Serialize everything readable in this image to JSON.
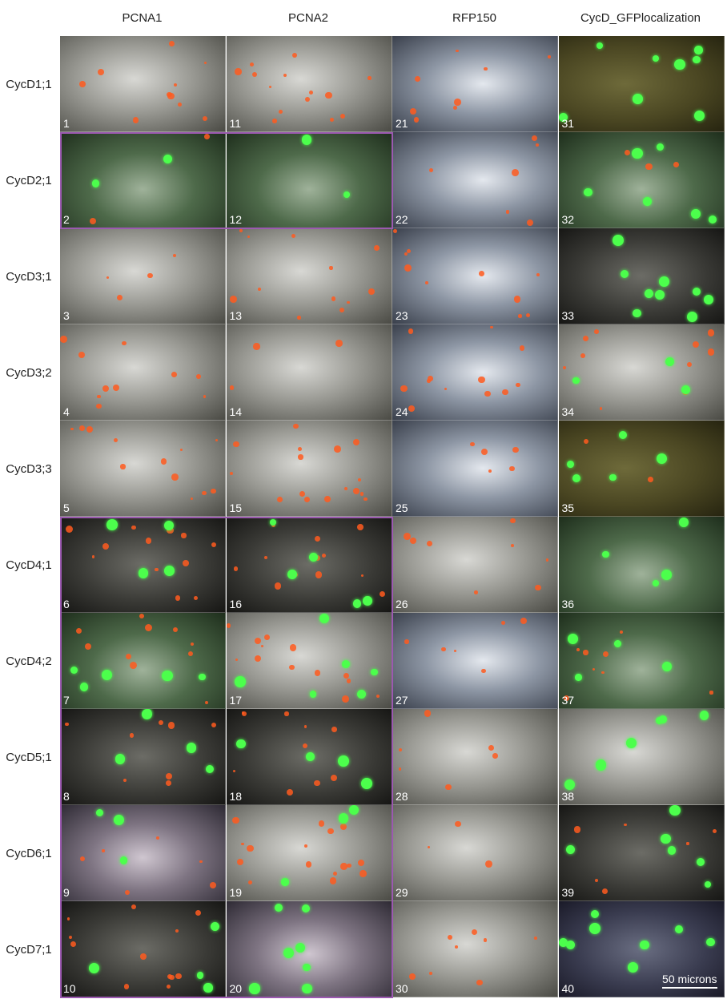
{
  "columns": [
    {
      "label": [
        "PCNA1"
      ]
    },
    {
      "label": [
        "PCNA2"
      ]
    },
    {
      "label": [
        "RFP150"
      ]
    },
    {
      "label": [
        "CycD_GFP",
        "localization"
      ]
    }
  ],
  "rows": [
    "CycD1;1",
    "CycD2;1",
    "CycD3;1",
    "CycD3;2",
    "CycD3;3",
    "CycD4;1",
    "CycD4;2",
    "CycD5;1",
    "CycD6;1",
    "CycD7;1"
  ],
  "panels": [
    {
      "num": "1",
      "tone": "gray",
      "green": 0,
      "red": 10
    },
    {
      "num": "11",
      "tone": "gray",
      "green": 0,
      "red": 14
    },
    {
      "num": "21",
      "tone": "blue",
      "green": 0,
      "red": 8
    },
    {
      "num": "31",
      "tone": "olive",
      "green": 8,
      "red": 0
    },
    {
      "num": "2",
      "tone": "green",
      "green": 2,
      "red": 2
    },
    {
      "num": "12",
      "tone": "green",
      "green": 2,
      "red": 0
    },
    {
      "num": "22",
      "tone": "blue",
      "green": 0,
      "red": 6
    },
    {
      "num": "32",
      "tone": "green",
      "green": 6,
      "red": 3
    },
    {
      "num": "3",
      "tone": "gray",
      "green": 0,
      "red": 4
    },
    {
      "num": "13",
      "tone": "gray",
      "green": 0,
      "red": 12
    },
    {
      "num": "23",
      "tone": "blue",
      "green": 0,
      "red": 10
    },
    {
      "num": "33",
      "tone": "dark",
      "green": 9,
      "red": 0
    },
    {
      "num": "4",
      "tone": "gray",
      "green": 0,
      "red": 10
    },
    {
      "num": "14",
      "tone": "gray",
      "green": 0,
      "red": 3
    },
    {
      "num": "24",
      "tone": "blue",
      "green": 0,
      "red": 12
    },
    {
      "num": "34",
      "tone": "gray",
      "green": 3,
      "red": 10
    },
    {
      "num": "5",
      "tone": "gray",
      "green": 0,
      "red": 12
    },
    {
      "num": "15",
      "tone": "gray",
      "green": 0,
      "red": 16
    },
    {
      "num": "25",
      "tone": "blue",
      "green": 0,
      "red": 5
    },
    {
      "num": "35",
      "tone": "olive",
      "green": 5,
      "red": 2
    },
    {
      "num": "6",
      "tone": "dark",
      "green": 4,
      "red": 12
    },
    {
      "num": "16",
      "tone": "dark",
      "green": 5,
      "red": 12
    },
    {
      "num": "26",
      "tone": "gray",
      "green": 0,
      "red": 8
    },
    {
      "num": "36",
      "tone": "green",
      "green": 4,
      "red": 0
    },
    {
      "num": "7",
      "tone": "green",
      "green": 5,
      "red": 10
    },
    {
      "num": "17",
      "tone": "gray",
      "green": 6,
      "red": 14
    },
    {
      "num": "27",
      "tone": "blue",
      "green": 0,
      "red": 6
    },
    {
      "num": "37",
      "tone": "green",
      "green": 4,
      "red": 8
    },
    {
      "num": "8",
      "tone": "dark",
      "green": 5,
      "red": 8
    },
    {
      "num": "18",
      "tone": "dark",
      "green": 4,
      "red": 10
    },
    {
      "num": "28",
      "tone": "gray",
      "green": 0,
      "red": 6
    },
    {
      "num": "38",
      "tone": "gray",
      "green": 6,
      "red": 0
    },
    {
      "num": "9",
      "tone": "violet",
      "green": 3,
      "red": 6
    },
    {
      "num": "19",
      "tone": "gray",
      "green": 3,
      "red": 16
    },
    {
      "num": "29",
      "tone": "gray",
      "green": 0,
      "red": 3
    },
    {
      "num": "39",
      "tone": "dark",
      "green": 6,
      "red": 6
    },
    {
      "num": "10",
      "tone": "dark",
      "green": 4,
      "red": 12
    },
    {
      "num": "20",
      "tone": "violet",
      "green": 7,
      "red": 0
    },
    {
      "num": "30",
      "tone": "gray",
      "green": 0,
      "red": 8
    },
    {
      "num": "40",
      "tone": "navy",
      "green": 8,
      "red": 0
    }
  ],
  "scale_bar": {
    "label": "50 microns"
  },
  "colors": {
    "frame": "#9b59b0",
    "gfp": "#4cff4c",
    "rfp": "#ff5a1e"
  }
}
